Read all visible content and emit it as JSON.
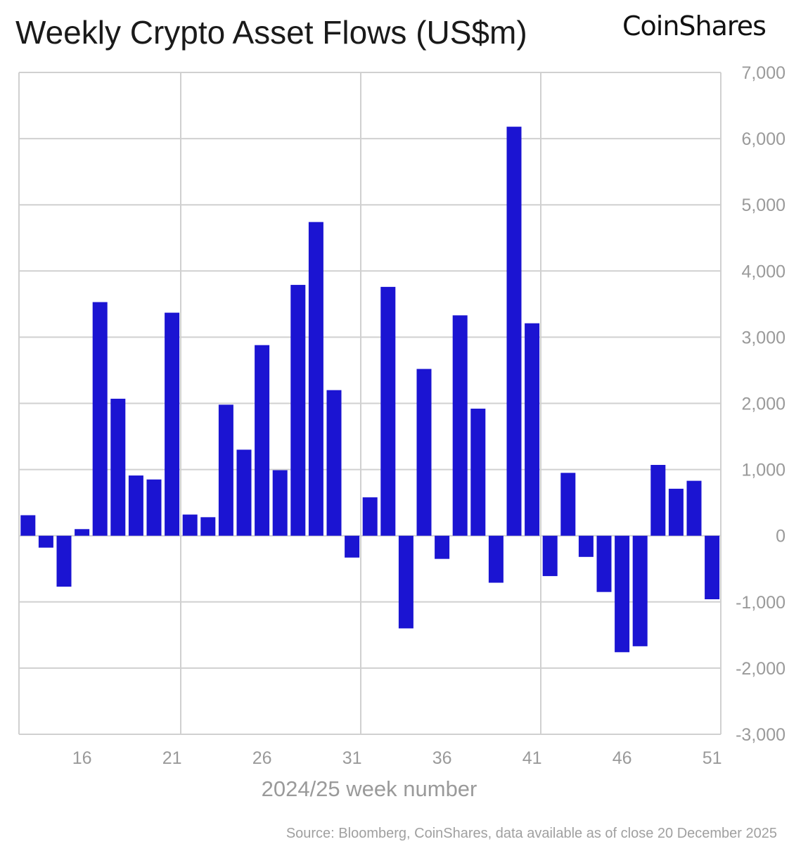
{
  "chart_data": {
    "type": "bar",
    "title": "Weekly Crypto Asset Flows (US$m)",
    "logo": "CoinShares",
    "xlabel": "2024/25 week number",
    "ylabel": "",
    "source": "Source: Bloomberg, CoinShares, data available as of close 20 December 2025",
    "ylim": [
      -3000,
      7000
    ],
    "yticks": [
      7000,
      6000,
      5000,
      4000,
      3000,
      2000,
      1000,
      0,
      -1000,
      -2000,
      -3000
    ],
    "ytick_labels": [
      "7,000",
      "6,000",
      "5,000",
      "4,000",
      "3,000",
      "2,000",
      "1,000",
      "0",
      "-1,000",
      "-2,000",
      "-3,000"
    ],
    "xtick_labels": [
      "16",
      "21",
      "26",
      "31",
      "36",
      "41",
      "46",
      "51"
    ],
    "y_axis_position": "right",
    "grid": true,
    "bar_color": "#1b14d2",
    "categories": [
      13,
      14,
      15,
      16,
      17,
      18,
      19,
      20,
      21,
      22,
      23,
      24,
      25,
      26,
      27,
      28,
      29,
      30,
      31,
      32,
      33,
      34,
      35,
      36,
      37,
      38,
      39,
      40,
      41,
      42,
      43,
      44,
      45,
      46,
      47,
      48,
      49,
      50,
      51
    ],
    "values": [
      310,
      -180,
      -770,
      100,
      3530,
      2070,
      910,
      850,
      3370,
      320,
      280,
      1980,
      1300,
      2880,
      990,
      3790,
      4740,
      2200,
      -330,
      580,
      3760,
      -1400,
      2520,
      -350,
      3330,
      1920,
      -710,
      6180,
      3210,
      -610,
      950,
      -320,
      -850,
      -1760,
      -1670,
      1070,
      710,
      830,
      -960
    ]
  }
}
